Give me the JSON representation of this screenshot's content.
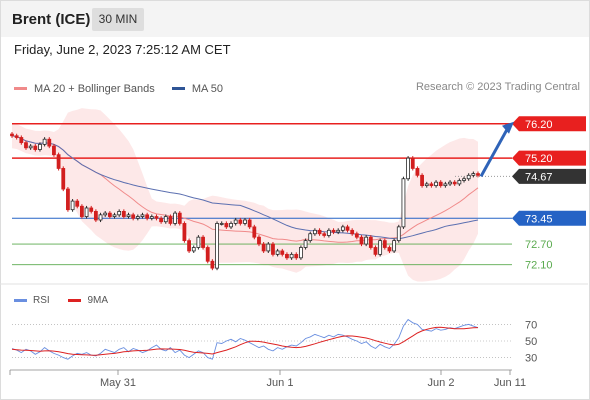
{
  "header": {
    "instrument": "Brent (ICE)",
    "interval": "30 MIN"
  },
  "datetime": "Friday, June 2, 2023 7:25:12 AM CET",
  "legend": {
    "bb_label": "MA 20 + Bollinger Bands",
    "ma50_label": "MA 50",
    "credit": "Research © 2023 Trading Central"
  },
  "rsi_legend": {
    "rsi_label": "RSI",
    "ma_label": "9MA"
  },
  "colors": {
    "resistance": "#e8201f",
    "support_blue": "#2563c5",
    "support_green": "#5aaa4e",
    "current": "#333333",
    "candle_up": "#2a2a2a",
    "candle_down": "#d21f1f",
    "bb_fill": "#fde2e2",
    "ma20": "#f08a8a",
    "ma50": "#5b6fb0",
    "arrow": "#2f63b8",
    "rsi": "#6a8fe0",
    "rsi_ma": "#dd2222"
  },
  "chart_data": [
    {
      "type": "candlestick",
      "x_ticks": [
        "May 31",
        "Jun 1",
        "Jun 2",
        "Jun 11"
      ],
      "price_range": [
        71.8,
        76.6
      ],
      "levels": [
        {
          "value": 76.2,
          "label": "76.20",
          "kind": "resistance"
        },
        {
          "value": 75.2,
          "label": "75.20",
          "kind": "resistance"
        },
        {
          "value": 74.67,
          "label": "74.67",
          "kind": "current"
        },
        {
          "value": 73.45,
          "label": "73.45",
          "kind": "support"
        },
        {
          "value": 72.7,
          "label": "72.70",
          "kind": "target"
        },
        {
          "value": 72.1,
          "label": "72.10",
          "kind": "target"
        }
      ],
      "closes": [
        75.85,
        75.8,
        75.65,
        75.5,
        75.55,
        75.45,
        75.6,
        75.75,
        75.55,
        75.3,
        74.9,
        74.3,
        73.7,
        73.95,
        73.8,
        73.5,
        73.75,
        73.65,
        73.4,
        73.55,
        73.6,
        73.5,
        73.55,
        73.65,
        73.5,
        73.55,
        73.45,
        73.5,
        73.55,
        73.45,
        73.5,
        73.45,
        73.35,
        73.5,
        73.3,
        73.6,
        73.3,
        72.8,
        72.5,
        72.6,
        72.9,
        72.6,
        72.2,
        72.0,
        73.3,
        73.3,
        73.2,
        73.3,
        73.4,
        73.3,
        73.4,
        73.2,
        72.9,
        72.7,
        72.5,
        72.7,
        72.4,
        72.5,
        72.4,
        72.3,
        72.4,
        72.3,
        72.6,
        72.8,
        73.0,
        73.1,
        73.0,
        72.95,
        73.1,
        73.05,
        73.1,
        73.2,
        73.1,
        73.0,
        72.9,
        72.7,
        72.9,
        72.6,
        72.4,
        72.8,
        72.6,
        72.5,
        72.8,
        73.2,
        74.6,
        75.2,
        74.9,
        74.7,
        74.4,
        74.45,
        74.4,
        74.5,
        74.4,
        74.45,
        74.5,
        74.45,
        74.55,
        74.6,
        74.7,
        74.75,
        74.7
      ],
      "forecast_arrow": {
        "from": 74.67,
        "to": 76.2
      }
    },
    {
      "type": "line",
      "title": "RSI",
      "y_ticks": [
        70,
        50,
        30
      ],
      "ylim": [
        15,
        85
      ],
      "series": [
        {
          "name": "RSI",
          "values": [
            41,
            39,
            36,
            40,
            38,
            34,
            37,
            42,
            38,
            35,
            33,
            30,
            28,
            32,
            35,
            34,
            36,
            33,
            32,
            35,
            40,
            38,
            36,
            40,
            42,
            37,
            41,
            39,
            36,
            38,
            42,
            45,
            40,
            38,
            42,
            36,
            39,
            33,
            30,
            34,
            38,
            36,
            30,
            28,
            48,
            47,
            50,
            52,
            49,
            53,
            51,
            48,
            45,
            42,
            44,
            40,
            38,
            42,
            40,
            43,
            45,
            44,
            48,
            53,
            55,
            58,
            56,
            54,
            57,
            55,
            58,
            57,
            55,
            52,
            50,
            47,
            49,
            44,
            41,
            46,
            43,
            41,
            46,
            54,
            68,
            76,
            72,
            70,
            64,
            63,
            62,
            65,
            63,
            64,
            66,
            65,
            67,
            69,
            70,
            68,
            66
          ]
        },
        {
          "name": "9MA",
          "values": [
            40,
            39.5,
            39,
            38.8,
            38.5,
            38,
            37.6,
            38,
            38.2,
            37.8,
            37,
            36,
            34.8,
            34,
            33.7,
            33.5,
            33.2,
            33,
            32.9,
            33.3,
            34,
            34.5,
            35,
            36,
            37,
            37.4,
            38,
            38.4,
            38.5,
            38.8,
            39.5,
            40.2,
            40.5,
            40.4,
            40.3,
            40,
            39.8,
            38.8,
            37.5,
            36.5,
            36,
            35.5,
            35,
            34.3,
            36,
            37.4,
            39,
            41,
            43,
            45.5,
            47.8,
            49.6,
            49.8,
            49.4,
            48.7,
            47.5,
            46.4,
            45.3,
            44,
            43,
            42.4,
            42,
            42.4,
            43.5,
            45,
            46.6,
            48.4,
            50,
            51.6,
            53,
            54.6,
            55.8,
            56.2,
            56,
            55.4,
            54.6,
            53.6,
            52.2,
            50.4,
            48.8,
            47.4,
            46,
            45.2,
            46,
            49,
            52.6,
            56.2,
            59.6,
            62.2,
            64,
            65.4,
            66.4,
            66.5,
            66,
            65.5,
            64.9,
            64.7,
            64.8,
            65.5,
            66,
            66.2
          ]
        }
      ]
    }
  ],
  "labels": {
    "rsi_tick_70": "70",
    "rsi_tick_50": "50",
    "rsi_tick_30": "30"
  }
}
